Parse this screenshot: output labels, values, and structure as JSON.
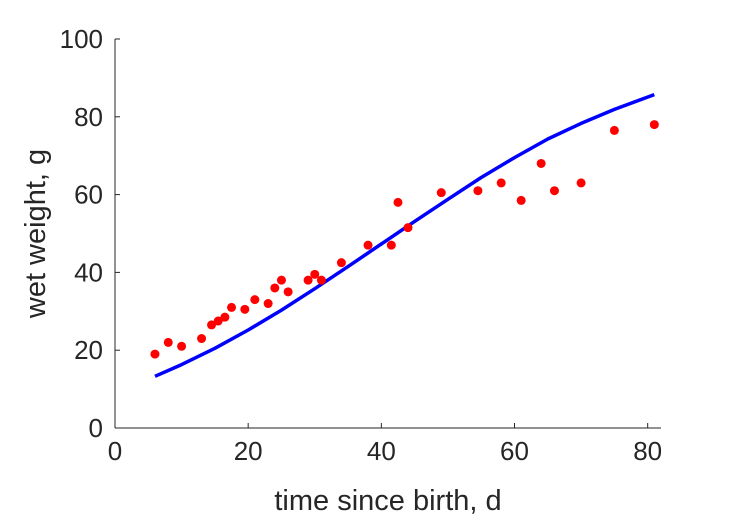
{
  "chart_data": {
    "type": "scatter",
    "xlabel": "time since birth, d",
    "ylabel": "wet weight, g",
    "xlim": [
      0,
      82
    ],
    "ylim": [
      0,
      100
    ],
    "xticks": [
      0,
      20,
      40,
      60,
      80
    ],
    "yticks": [
      0,
      20,
      40,
      60,
      80,
      100
    ],
    "grid": false,
    "series": [
      {
        "kind": "scatter",
        "color": "#ff0000",
        "points": [
          [
            6,
            19
          ],
          [
            8,
            22
          ],
          [
            10,
            21
          ],
          [
            13,
            23
          ],
          [
            14.5,
            26.5
          ],
          [
            15.5,
            27.5
          ],
          [
            16.5,
            28.5
          ],
          [
            17.5,
            31
          ],
          [
            19.5,
            30.5
          ],
          [
            21,
            33
          ],
          [
            23,
            32
          ],
          [
            24,
            36
          ],
          [
            25,
            38
          ],
          [
            26,
            35
          ],
          [
            29,
            38
          ],
          [
            30,
            39.5
          ],
          [
            31,
            38
          ],
          [
            34,
            42.5
          ],
          [
            38,
            47
          ],
          [
            41.5,
            47
          ],
          [
            42.5,
            58
          ],
          [
            44,
            51.5
          ],
          [
            49,
            60.5
          ],
          [
            54.5,
            61
          ],
          [
            58,
            63
          ],
          [
            61,
            58.5
          ],
          [
            64,
            68
          ],
          [
            66,
            61
          ],
          [
            70,
            63
          ],
          [
            75,
            76.5
          ],
          [
            81,
            78
          ]
        ]
      },
      {
        "kind": "line",
        "color": "#0000ff",
        "points": [
          [
            6,
            13.3
          ],
          [
            10,
            16.3
          ],
          [
            15,
            20.5
          ],
          [
            20,
            25.2
          ],
          [
            25,
            30.3
          ],
          [
            30,
            35.8
          ],
          [
            35,
            41.5
          ],
          [
            40,
            47.3
          ],
          [
            45,
            53.1
          ],
          [
            50,
            58.8
          ],
          [
            55,
            64.4
          ],
          [
            60,
            69.5
          ],
          [
            65,
            74.3
          ],
          [
            70,
            78.3
          ],
          [
            75,
            81.9
          ],
          [
            81,
            85.7
          ]
        ]
      }
    ]
  }
}
